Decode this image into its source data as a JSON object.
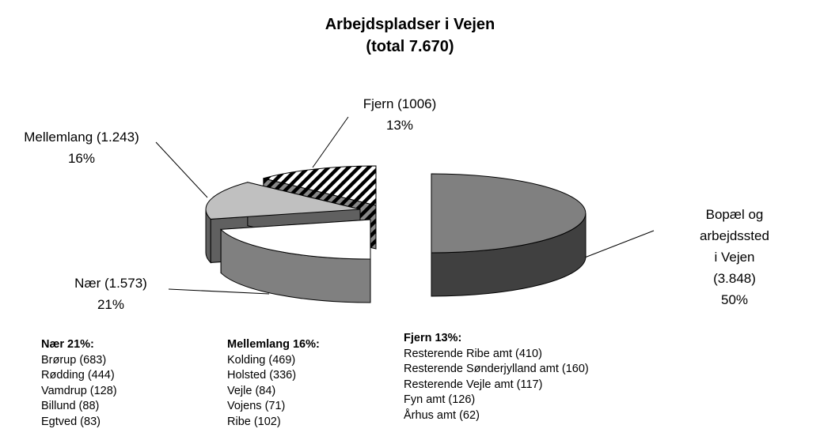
{
  "chart_data": {
    "type": "pie",
    "title": "Arbejdspladser i Vejen",
    "subtitle": "(total 7.670)",
    "categories": [
      "Bopæl og arbejdssted\ni Vejen (3.848)",
      "Nær (1.573)",
      "Mellemlang (1.243)",
      "Fjern (1006)"
    ],
    "values": [
      50,
      21,
      16,
      13
    ],
    "value_labels": [
      "50%",
      "21%",
      "16%",
      "13%"
    ],
    "colors": [
      "#808080",
      "#ffffff",
      "#c0c0c0",
      "#ffffff"
    ],
    "patterns": [
      null,
      null,
      null,
      "diagonal-stripes"
    ]
  },
  "lists": [
    {
      "title": "Nær 21%:",
      "items": [
        "Brørup (683)",
        "Rødding (444)",
        "Vamdrup (128)",
        "Billund (88)",
        "Egtved (83)"
      ]
    },
    {
      "title": "Mellemlang 16%:",
      "items": [
        "Kolding (469)",
        "Holsted (336)",
        "Vejle (84)",
        "Vojens (71)",
        "Ribe (102)"
      ]
    },
    {
      "title": "Fjern 13%:",
      "items": [
        "Resterende Ribe amt (410)",
        "Resterende Sønderjylland amt (160)",
        "Resterende Vejle amt (117)",
        "Fyn amt (126)",
        "Århus amt (62)"
      ]
    }
  ]
}
